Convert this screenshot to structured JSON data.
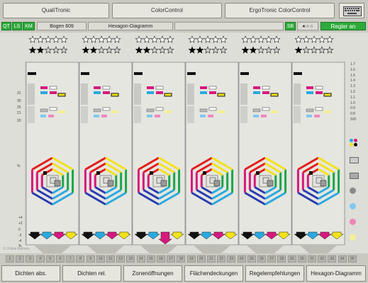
{
  "top_buttons": [
    "QualiTronic",
    "ColorControl",
    "ErgoTronic ColorControl"
  ],
  "status": {
    "tabs": [
      "QT",
      "LS",
      "KM"
    ],
    "sheet": "Bogen 609",
    "view": "Hexagon-Diagramm",
    "sb": "SB",
    "controller": "Regler an"
  },
  "right_scale": [
    "1.7",
    "1.6",
    "1.5",
    "1.4",
    "1.3",
    "1.2",
    "1.1",
    "1.0",
    "0.9",
    "0.8",
    "SID"
  ],
  "left_scale": [
    "31",
    "30",
    "25",
    "21",
    "20",
    "%"
  ],
  "left_scale_low": [
    "+4",
    "+2",
    "0",
    "-2",
    "-4",
    "%"
  ],
  "copyright": "© Online Balmes",
  "zone_numbers": [
    "1",
    "2",
    "3",
    "4",
    "5",
    "6",
    "7",
    "8",
    "9",
    "10",
    "11",
    "12",
    "13",
    "14",
    "15",
    "16",
    "17",
    "18",
    "19",
    "20",
    "21",
    "22",
    "23",
    "24",
    "25",
    "26",
    "27",
    "28",
    "29",
    "30",
    "31",
    "32",
    "33",
    "34",
    "35"
  ],
  "bottom_buttons": [
    "Dichten abs.",
    "Dichten rel.",
    "Zonenöffnungen",
    "Flächendeckungen",
    "Regelempfehlungen",
    "Hexagon-Diagramm"
  ],
  "colors": {
    "cyan": "#2aa9e0",
    "magenta": "#d6197d",
    "yellow": "#f2e21a",
    "black": "#111111",
    "red": "#e21b1b",
    "green": "#19a64a",
    "blue": "#2a3bb0"
  },
  "zones": [
    {
      "stars_filled": 1
    },
    {
      "stars_filled": 1
    },
    {
      "stars_filled": 1
    },
    {
      "stars_filled": 1
    },
    {
      "stars_filled": 1
    },
    {
      "stars_filled": 1
    }
  ]
}
